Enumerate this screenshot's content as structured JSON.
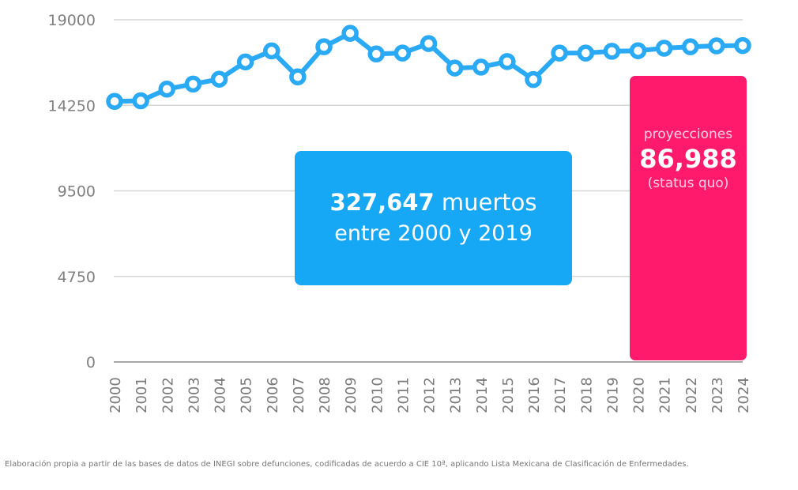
{
  "chart_data": {
    "type": "line",
    "title": "",
    "xlabel": "",
    "ylabel": "",
    "ylim": [
      0,
      19000
    ],
    "yticks": [
      "19000",
      "14250",
      "9500",
      "4750",
      "0"
    ],
    "grid": true,
    "x": [
      "2000",
      "2001",
      "2002",
      "2003",
      "2004",
      "2005",
      "2006",
      "2007",
      "2008",
      "2009",
      "2010",
      "2011",
      "2012",
      "2013",
      "2014",
      "2015",
      "2016",
      "2017",
      "2018",
      "2019",
      "2020",
      "2021",
      "2022",
      "2023",
      "2024"
    ],
    "series": [
      {
        "name": "muertos",
        "color": "#2aa9f5",
        "values": [
          14470,
          14500,
          15150,
          15430,
          15700,
          16660,
          17270,
          15830,
          17500,
          18250,
          17100,
          17150,
          17680,
          16320,
          16370,
          16680,
          15680,
          17150,
          17150,
          17250,
          17280,
          17420,
          17500,
          17550,
          17570
        ]
      }
    ],
    "annotations": {
      "historic": {
        "number": "327,647",
        "unit": "muertos",
        "range_text": "entre 2000 y 2019",
        "color": "#16a7f5"
      },
      "projection": {
        "label": "proyecciones",
        "number": "86,988",
        "note": "(status quo)",
        "start_year": "2020",
        "end_year": "2024",
        "color": "#ff1a6c"
      }
    }
  },
  "footnote": "Elaboración propia a partir de las bases de datos de INEGI sobre defunciones, codificadas de acuerdo a CIE 10ª, aplicando Lista Mexicana de Clasificación de Enfermedades."
}
